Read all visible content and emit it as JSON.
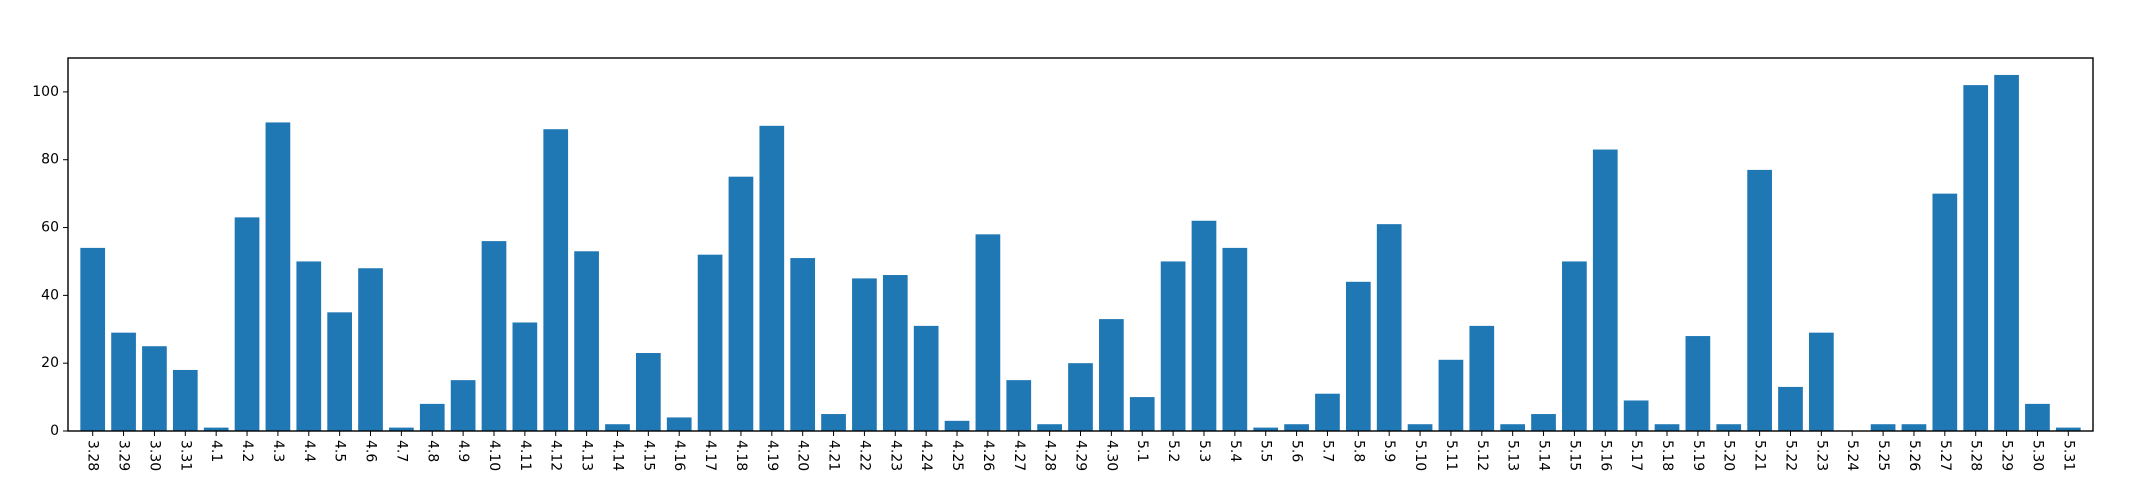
{
  "chart_data": {
    "type": "bar",
    "title": "",
    "xlabel": "",
    "ylabel": "",
    "ylim": [
      0,
      110
    ],
    "yticks": [
      0,
      20,
      40,
      60,
      80,
      100
    ],
    "grid": false,
    "bar_color": "#1f77b4",
    "categories": [
      "3.28",
      "3.29",
      "3.30",
      "3.31",
      "4.1",
      "4.2",
      "4.3",
      "4.4",
      "4.5",
      "4.6",
      "4.7",
      "4.8",
      "4.9",
      "4.10",
      "4.11",
      "4.12",
      "4.13",
      "4.14",
      "4.15",
      "4.16",
      "4.17",
      "4.18",
      "4.19",
      "4.20",
      "4.21",
      "4.22",
      "4.23",
      "4.24",
      "4.25",
      "4.26",
      "4.27",
      "4.28",
      "4.29",
      "4.30",
      "5.1",
      "5.2",
      "5.3",
      "5.4",
      "5.5",
      "5.6",
      "5.7",
      "5.8",
      "5.9",
      "5.10",
      "5.11",
      "5.12",
      "5.13",
      "5.14",
      "5.15",
      "5.16",
      "5.17",
      "5.18",
      "5.19",
      "5.20",
      "5.21",
      "5.22",
      "5.23",
      "5.24",
      "5.25",
      "5.26",
      "5.27",
      "5.28",
      "5.29",
      "5.30",
      "5.31"
    ],
    "values": [
      54,
      29,
      25,
      18,
      1,
      63,
      91,
      50,
      35,
      48,
      1,
      8,
      15,
      56,
      32,
      89,
      53,
      2,
      23,
      4,
      52,
      75,
      90,
      51,
      5,
      45,
      46,
      31,
      3,
      58,
      15,
      2,
      20,
      33,
      10,
      50,
      62,
      54,
      1,
      2,
      11,
      44,
      61,
      2,
      21,
      31,
      2,
      5,
      50,
      83,
      9,
      2,
      28,
      2,
      77,
      13,
      29,
      0,
      2,
      2,
      70,
      102,
      105,
      8,
      1
    ]
  }
}
